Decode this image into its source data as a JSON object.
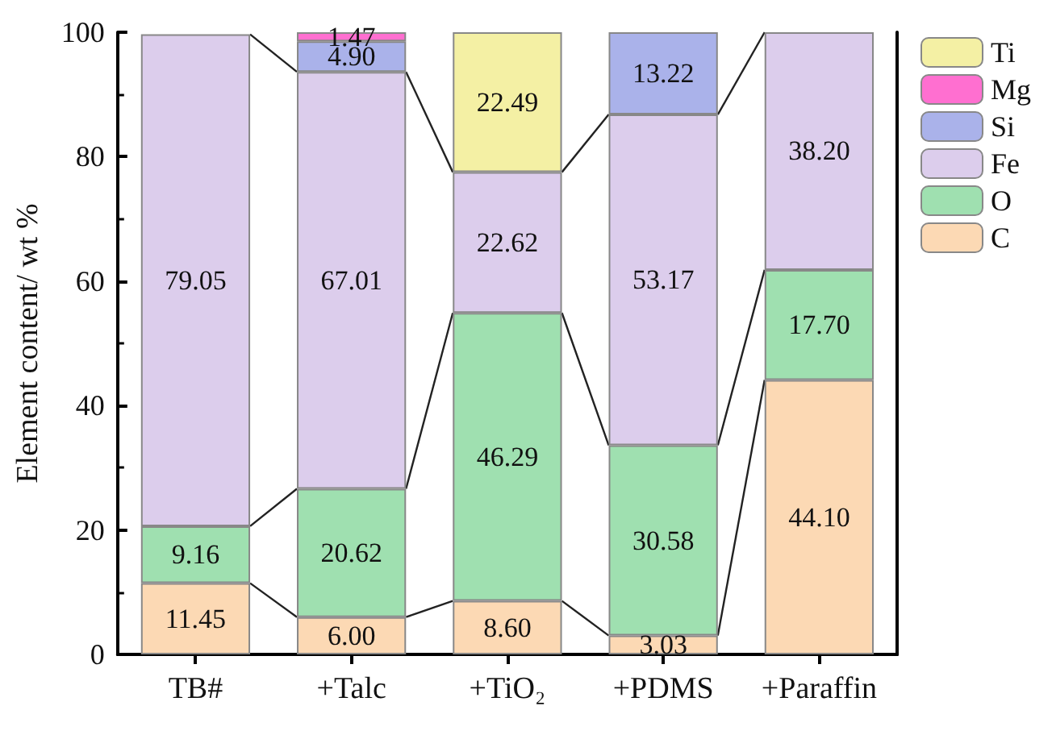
{
  "chart_data": {
    "type": "bar",
    "stacked": true,
    "ylabel": "Element content/ wt %",
    "categories": [
      "TB#",
      "+Talc",
      "+TiO₂",
      "+PDMS",
      "+Paraffin"
    ],
    "series": [
      {
        "name": "C",
        "color": "#fcd9b4",
        "values": [
          11.45,
          6.0,
          8.6,
          3.03,
          44.1
        ],
        "value_labels": [
          "11.45",
          "6.00",
          "8.60",
          "3.03",
          "44.10"
        ]
      },
      {
        "name": "O",
        "color": "#9fe0b0",
        "values": [
          9.16,
          20.62,
          46.29,
          30.58,
          17.7
        ],
        "value_labels": [
          "9.16",
          "20.62",
          "46.29",
          "30.58",
          "17.70"
        ]
      },
      {
        "name": "Fe",
        "color": "#dccdec",
        "values": [
          79.05,
          67.01,
          22.62,
          53.17,
          38.2
        ],
        "value_labels": [
          "79.05",
          "67.01",
          "22.62",
          "53.17",
          "38.20"
        ]
      },
      {
        "name": "Si",
        "color": "#aab2ea",
        "values": [
          null,
          4.9,
          null,
          13.22,
          null
        ],
        "value_labels": [
          null,
          "4.90",
          null,
          "13.22",
          null
        ]
      },
      {
        "name": "Mg",
        "color": "#ff6fd0",
        "values": [
          null,
          1.47,
          null,
          null,
          null
        ],
        "value_labels": [
          null,
          "1.47",
          null,
          null,
          null
        ]
      },
      {
        "name": "Ti",
        "color": "#f4f0a4",
        "values": [
          null,
          null,
          22.49,
          null,
          null
        ],
        "value_labels": [
          null,
          null,
          "22.49",
          null,
          null
        ]
      }
    ],
    "ylim": [
      0,
      100
    ],
    "yticks": [
      0,
      20,
      40,
      60,
      80,
      100
    ],
    "legend": "top right",
    "grid": false
  }
}
